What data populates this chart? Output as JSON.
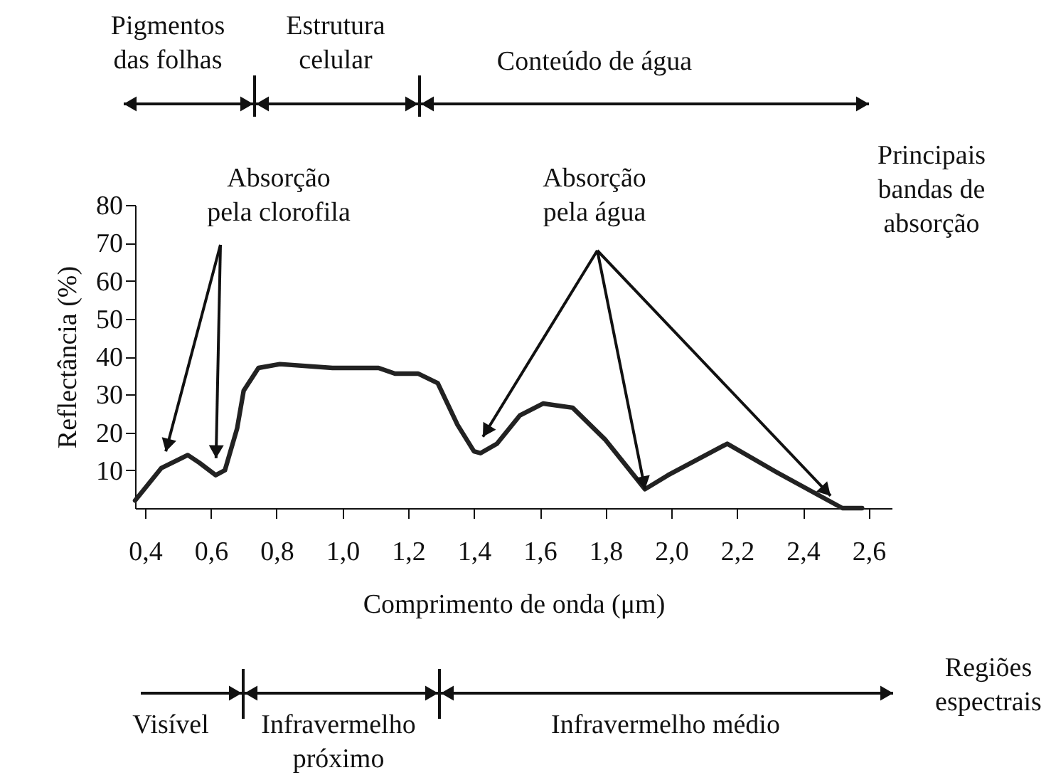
{
  "chart_data": {
    "type": "line",
    "xlabel": "Comprimento de onda (μm)",
    "ylabel": "Reflectância (%)",
    "x": [
      0.37,
      0.45,
      0.53,
      0.565,
      0.615,
      0.643,
      0.68,
      0.7,
      0.745,
      0.81,
      0.97,
      1.11,
      1.16,
      1.23,
      1.29,
      1.35,
      1.4,
      1.42,
      1.47,
      1.54,
      1.61,
      1.7,
      1.8,
      1.92,
      1.99,
      2.17,
      2.32,
      2.52,
      2.58
    ],
    "series": [
      {
        "color": "#222222",
        "values": [
          2,
          10.6,
          14,
          12,
          8.7,
          10,
          21,
          31,
          37,
          38,
          37,
          37,
          35.5,
          35.5,
          33,
          22,
          15,
          14.5,
          17,
          24.5,
          27.6,
          26.5,
          18,
          5,
          8.7,
          17,
          9.5,
          0,
          0
        ]
      }
    ],
    "xlim": [
      0.37,
      2.67
    ],
    "ylim": [
      0,
      80
    ],
    "xticks": [
      {
        "value": 0.4,
        "label": "0,4"
      },
      {
        "value": 0.6,
        "label": "0,6"
      },
      {
        "value": 0.8,
        "label": "0,8"
      },
      {
        "value": 1.0,
        "label": "1,0"
      },
      {
        "value": 1.2,
        "label": "1,2"
      },
      {
        "value": 1.4,
        "label": "1,4"
      },
      {
        "value": 1.6,
        "label": "1,6"
      },
      {
        "value": 1.8,
        "label": "1,8"
      },
      {
        "value": 2.0,
        "label": "2,0"
      },
      {
        "value": 2.2,
        "label": "2,2"
      },
      {
        "value": 2.4,
        "label": "2,4"
      },
      {
        "value": 2.6,
        "label": "2,6"
      }
    ],
    "yticks": [
      10,
      20,
      30,
      40,
      50,
      60,
      70,
      80
    ],
    "grid": false,
    "marker": "none",
    "line_style": "solid",
    "annotations": [
      "Absorção\npela clorofila",
      {
        "text": "Absorção\npela água",
        "x": 1.92,
        "y": 5
      },
      "Principais\nbandas de\nabsorção",
      "Regiões\nespectrais",
      "Pigmentos\ndas folhas",
      "Estrutura\ncelular",
      "Conteúdo de água",
      "Visível",
      "Infravermelho\npróximo",
      "Infravermelho médio"
    ]
  }
}
